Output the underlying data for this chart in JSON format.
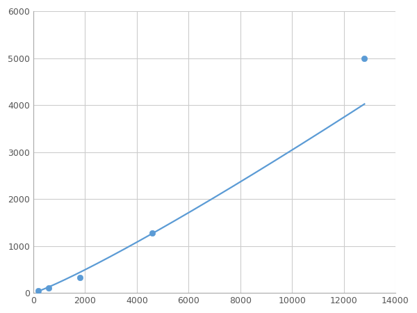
{
  "x": [
    200,
    600,
    1800,
    4600,
    12800
  ],
  "y": [
    50,
    100,
    320,
    1280,
    5000
  ],
  "line_color": "#5b9bd5",
  "marker_color": "#5b9bd5",
  "marker_size": 6,
  "line_width": 1.6,
  "xlim": [
    0,
    14000
  ],
  "ylim": [
    0,
    6000
  ],
  "xticks": [
    0,
    2000,
    4000,
    6000,
    8000,
    10000,
    12000,
    14000
  ],
  "yticks": [
    0,
    1000,
    2000,
    3000,
    4000,
    5000,
    6000
  ],
  "grid_color": "#cccccc",
  "grid_linewidth": 0.8,
  "background_color": "#ffffff",
  "figsize": [
    6.0,
    4.5
  ],
  "dpi": 100
}
